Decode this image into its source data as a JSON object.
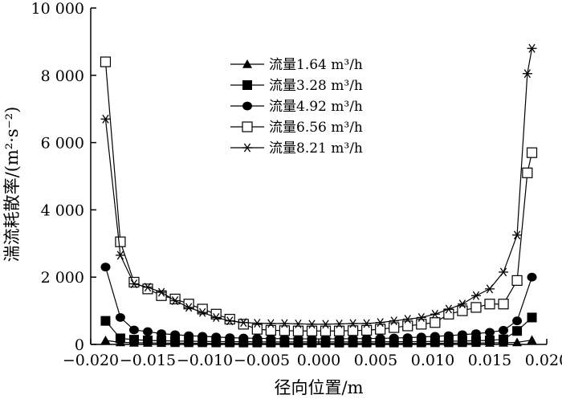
{
  "chart_data": {
    "type": "line",
    "xlabel": "径向位置/m",
    "ylabel": "湍流耗散率/(m²·s⁻²)",
    "xlim": [
      -0.02,
      0.02
    ],
    "ylim": [
      0,
      10000
    ],
    "x_ticks": [
      -0.02,
      -0.015,
      -0.01,
      -0.005,
      0.0,
      0.005,
      0.01,
      0.015,
      0.02
    ],
    "x_tick_labels": [
      "−0.020",
      "−0.015",
      "−0.010",
      "−0.005",
      "0.000",
      "0.005",
      "0.010",
      "0.015",
      "0.020"
    ],
    "y_ticks": [
      0,
      2000,
      4000,
      6000,
      8000,
      10000
    ],
    "y_tick_labels": [
      "0",
      "2 000",
      "4 000",
      "6 000",
      "8 000",
      "10 000"
    ],
    "grid": false,
    "legend_position": "top-center",
    "series": [
      {
        "name": "流量1.64 m³/h",
        "marker": "triangle",
        "x": [
          -0.0187,
          -0.0174,
          -0.0162,
          -0.015,
          -0.0138,
          -0.0126,
          -0.0114,
          -0.0102,
          -0.009,
          -0.0078,
          -0.0066,
          -0.0054,
          -0.0042,
          -0.003,
          -0.0018,
          -0.0006,
          0.0006,
          0.0018,
          0.003,
          0.0042,
          0.0054,
          0.0066,
          0.0078,
          0.009,
          0.0102,
          0.0114,
          0.0126,
          0.0138,
          0.015,
          0.0162,
          0.0174,
          0.0187
        ],
        "y": [
          120,
          60,
          50,
          45,
          40,
          38,
          35,
          33,
          30,
          30,
          28,
          28,
          27,
          27,
          26,
          26,
          26,
          26,
          27,
          27,
          28,
          28,
          30,
          30,
          33,
          35,
          38,
          40,
          45,
          50,
          60,
          130
        ]
      },
      {
        "name": "流量3.28 m³/h",
        "marker": "filled-square",
        "x": [
          -0.0187,
          -0.0174,
          -0.0162,
          -0.015,
          -0.0138,
          -0.0126,
          -0.0114,
          -0.0102,
          -0.009,
          -0.0078,
          -0.0066,
          -0.0054,
          -0.0042,
          -0.003,
          -0.0018,
          -0.0006,
          0.0006,
          0.0018,
          0.003,
          0.0042,
          0.0054,
          0.0066,
          0.0078,
          0.009,
          0.0102,
          0.0114,
          0.0126,
          0.0138,
          0.015,
          0.0162,
          0.0174,
          0.0187
        ],
        "y": [
          700,
          180,
          140,
          120,
          110,
          100,
          95,
          90,
          85,
          80,
          80,
          78,
          75,
          75,
          75,
          75,
          75,
          75,
          75,
          75,
          78,
          80,
          80,
          85,
          90,
          95,
          100,
          110,
          120,
          150,
          400,
          800
        ]
      },
      {
        "name": "流量4.92 m³/h",
        "marker": "filled-circle",
        "x": [
          -0.0187,
          -0.0174,
          -0.0162,
          -0.015,
          -0.0138,
          -0.0126,
          -0.0114,
          -0.0102,
          -0.009,
          -0.0078,
          -0.0066,
          -0.0054,
          -0.0042,
          -0.003,
          -0.0018,
          -0.0006,
          0.0006,
          0.0018,
          0.003,
          0.0042,
          0.0054,
          0.0066,
          0.0078,
          0.009,
          0.0102,
          0.0114,
          0.0126,
          0.0138,
          0.015,
          0.0162,
          0.0174,
          0.0187
        ],
        "y": [
          2300,
          800,
          430,
          380,
          320,
          290,
          260,
          240,
          220,
          200,
          190,
          180,
          175,
          170,
          165,
          165,
          165,
          165,
          170,
          175,
          180,
          190,
          200,
          220,
          240,
          260,
          290,
          320,
          360,
          420,
          700,
          2000
        ]
      },
      {
        "name": "流量6.56 m³/h",
        "marker": "open-square",
        "x": [
          -0.0187,
          -0.0174,
          -0.0162,
          -0.015,
          -0.0138,
          -0.0126,
          -0.0114,
          -0.0102,
          -0.009,
          -0.0078,
          -0.0066,
          -0.0054,
          -0.0042,
          -0.003,
          -0.0018,
          -0.0006,
          0.0006,
          0.0018,
          0.003,
          0.0042,
          0.0054,
          0.0066,
          0.0078,
          0.009,
          0.0102,
          0.0114,
          0.0126,
          0.0138,
          0.015,
          0.0162,
          0.0174,
          0.0183,
          0.0187
        ],
        "y": [
          8400,
          3050,
          1850,
          1650,
          1450,
          1350,
          1200,
          1050,
          900,
          750,
          600,
          450,
          420,
          410,
          400,
          400,
          400,
          400,
          410,
          420,
          450,
          500,
          550,
          600,
          650,
          900,
          1000,
          1100,
          1200,
          1200,
          1900,
          5100,
          5700
        ]
      },
      {
        "name": "流量8.21 m³/h",
        "marker": "asterisk",
        "x": [
          -0.0187,
          -0.0174,
          -0.0162,
          -0.015,
          -0.0138,
          -0.0126,
          -0.0114,
          -0.0102,
          -0.009,
          -0.0078,
          -0.0066,
          -0.0054,
          -0.0042,
          -0.003,
          -0.0018,
          -0.0006,
          0.0006,
          0.0018,
          0.003,
          0.0042,
          0.0054,
          0.0066,
          0.0078,
          0.009,
          0.0102,
          0.0114,
          0.0126,
          0.0138,
          0.015,
          0.0162,
          0.0174,
          0.0183,
          0.0187
        ],
        "y": [
          6700,
          2650,
          1800,
          1700,
          1550,
          1300,
          1100,
          950,
          800,
          700,
          650,
          630,
          620,
          620,
          610,
          600,
          600,
          610,
          620,
          620,
          650,
          700,
          750,
          800,
          900,
          1050,
          1200,
          1450,
          1650,
          2150,
          3250,
          8050,
          8800
        ]
      }
    ]
  }
}
